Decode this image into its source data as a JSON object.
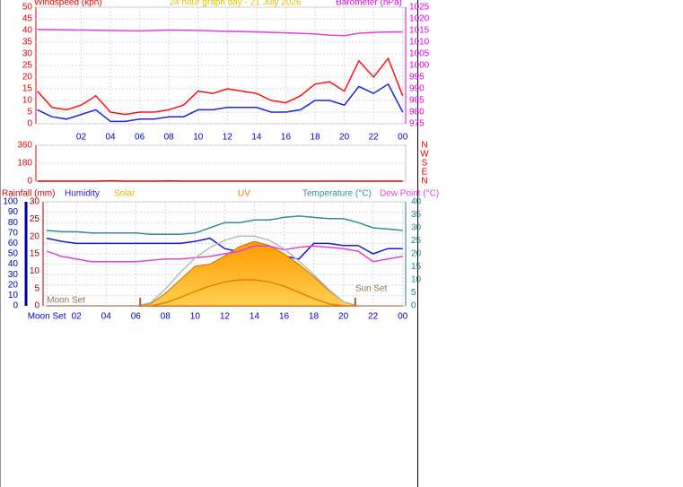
{
  "chart_data": [
    {
      "type": "line",
      "title": "24 hour graph day - 21 July 2026",
      "y_label": "Windspeed (kph)",
      "y2_label": "Barometer (hPa)",
      "x": [
        -1,
        0,
        1,
        2,
        3,
        4,
        5,
        6,
        7,
        8,
        9,
        10,
        11,
        12,
        13,
        14,
        15,
        16,
        17,
        18,
        19,
        20,
        21,
        22,
        23,
        24
      ],
      "xlim": [
        -1.1,
        24.2
      ],
      "xticks": [
        {
          "value": 2,
          "label": "02"
        },
        {
          "value": 4,
          "label": "04"
        },
        {
          "value": 6,
          "label": "06"
        },
        {
          "value": 8,
          "label": "08"
        },
        {
          "value": 10,
          "label": "10"
        },
        12,
        14,
        16,
        18,
        20,
        22,
        {
          "value": 24,
          "label": "00"
        }
      ],
      "ylim": [
        0,
        50
      ],
      "yticks": [
        0,
        5,
        10,
        15,
        20,
        25,
        30,
        35,
        40,
        45,
        50
      ],
      "y_color": "#e00000",
      "y2lim": [
        975,
        1025
      ],
      "y2ticks": [
        975,
        980,
        985,
        990,
        995,
        1000,
        1005,
        1010,
        1015,
        1020,
        1025
      ],
      "y2_color": "#e000e0",
      "grid": true,
      "series": [
        {
          "color": "#ff1010",
          "values": [
            14,
            7,
            6,
            8,
            12,
            5,
            4,
            5,
            5,
            6,
            8,
            14,
            13,
            15,
            14,
            13,
            10,
            9,
            12,
            17,
            18,
            14,
            27,
            20,
            28,
            12
          ]
        },
        {
          "color": "#2020e0",
          "values": [
            6,
            3,
            2,
            4,
            6,
            1,
            1,
            2,
            2,
            3,
            3,
            6,
            6,
            7,
            7,
            7,
            5,
            5,
            6,
            10,
            10,
            8,
            16,
            13,
            17,
            5
          ]
        },
        {
          "color": "#e040e0",
          "axis": "y2",
          "values": [
            1015.5,
            1015.4,
            1015.3,
            1015.2,
            1015.1,
            1015,
            1014.9,
            1014.8,
            1015,
            1015.2,
            1015.1,
            1015,
            1014.8,
            1014.6,
            1014.5,
            1014.4,
            1014.2,
            1014,
            1013.8,
            1013.5,
            1013,
            1012.8,
            1013.8,
            1014.2,
            1014.3,
            1014.4
          ]
        }
      ]
    },
    {
      "type": "line",
      "x": [
        -1,
        0,
        1,
        2,
        3,
        4,
        5,
        6,
        7,
        8,
        9,
        10,
        11,
        12,
        13,
        14,
        15,
        16,
        17,
        18,
        19,
        20,
        21,
        22,
        23,
        24
      ],
      "xlim": [
        -1.1,
        24.2
      ],
      "ylim": [
        0,
        360
      ],
      "yticks": [
        0,
        180,
        360
      ],
      "y_color": "#e00000",
      "y2lim": [
        0,
        360
      ],
      "y2ticks": [
        {
          "value": 360,
          "label": "N"
        },
        {
          "value": 270,
          "label": "W"
        },
        {
          "value": 180,
          "label": "S"
        },
        {
          "value": 90,
          "label": "E"
        },
        {
          "value": 0,
          "label": "N"
        }
      ],
      "y2_color": "#e00000",
      "grid": true,
      "series": [
        {
          "color": "#e00000",
          "values": [
            0,
            0,
            0,
            0,
            0,
            4,
            0,
            0,
            0,
            3,
            0,
            0,
            0,
            0,
            0,
            0,
            0,
            0,
            0,
            0,
            0,
            0,
            0,
            0,
            0,
            0
          ]
        }
      ]
    },
    {
      "type": "line",
      "x": [
        0,
        1,
        2,
        3,
        4,
        5,
        6,
        7,
        8,
        9,
        10,
        11,
        12,
        13,
        14,
        15,
        16,
        17,
        18,
        19,
        20,
        21,
        22,
        23,
        24
      ],
      "xlim": [
        -0.25,
        24.2
      ],
      "xticks": [
        {
          "value": 0,
          "label": "Moon Set"
        },
        {
          "value": 2,
          "label": "02"
        },
        {
          "value": 4,
          "label": "04"
        },
        {
          "value": 6,
          "label": "06"
        },
        {
          "value": 8,
          "label": "08"
        },
        {
          "value": 10,
          "label": "10"
        },
        12,
        14,
        16,
        18,
        20,
        22,
        {
          "value": 24,
          "label": "00"
        }
      ],
      "ylim": [
        0,
        100
      ],
      "yticks": [
        0,
        10,
        20,
        30,
        40,
        50,
        60,
        70,
        80,
        90,
        100
      ],
      "y_color": "#0000a0",
      "y3lim": [
        0,
        30
      ],
      "y3ticks": [
        0,
        5,
        10,
        15,
        20,
        25,
        30
      ],
      "y3_color": "#a00000",
      "y2lim": [
        0,
        40
      ],
      "y2ticks": [
        0,
        5,
        10,
        15,
        20,
        25,
        30,
        35,
        40
      ],
      "y2_color": "#208080",
      "grid": true,
      "sun_events": [
        6.3,
        20.8
      ],
      "annotations": [
        {
          "text": "Moon Set",
          "x": 0,
          "y": 2
        },
        {
          "text": "Sun Set",
          "x": 20.8,
          "y": 13
        }
      ],
      "series": [
        {
          "name": "Rainfall (mm)",
          "color": "#c00000",
          "axis": "y3",
          "values": [
            0,
            0,
            0,
            0,
            0,
            0,
            0,
            0,
            0,
            0,
            0,
            0,
            0,
            0,
            0,
            0,
            0,
            0,
            0,
            0,
            0,
            0,
            0,
            0,
            0
          ]
        },
        {
          "name": "Humidity",
          "color": "#1a1ad0",
          "values": [
            65,
            62,
            60,
            60,
            60,
            60,
            60,
            60,
            60,
            60,
            62,
            65,
            55,
            52,
            56,
            56,
            48,
            45,
            60,
            60,
            58,
            58,
            50,
            55,
            55
          ]
        },
        {
          "name": "Solar",
          "color": "#e8b000",
          "style": "area",
          "values": [
            0,
            0,
            0,
            0,
            0,
            0,
            0,
            2,
            12,
            25,
            38,
            40,
            48,
            57,
            62,
            58,
            50,
            40,
            28,
            15,
            4,
            0,
            0,
            0,
            0
          ]
        },
        {
          "name": "UV",
          "color": "#e08000",
          "values": [
            0,
            0,
            0,
            0,
            0,
            0,
            0,
            0,
            3,
            8,
            14,
            19,
            23,
            25,
            25,
            23,
            19,
            13,
            7,
            2,
            0,
            0,
            0,
            0,
            0
          ]
        },
        {
          "name": "Temperature (°C)",
          "color": "#308f8f",
          "axis": "y2",
          "values": [
            29,
            28.5,
            28.5,
            28,
            28,
            28,
            28,
            27.5,
            27.5,
            27.5,
            28,
            30,
            32,
            32,
            33,
            33,
            34,
            34.5,
            34,
            33.5,
            33.5,
            32,
            30,
            29.5,
            29
          ]
        },
        {
          "name": "Dew Point (°C)",
          "color": "#e040e0",
          "axis": "y2",
          "values": [
            21,
            19,
            18,
            17,
            17,
            17,
            17,
            17.5,
            18,
            18,
            18.5,
            19,
            20,
            21,
            23,
            23,
            21.5,
            22.5,
            23,
            22.5,
            22,
            21,
            17,
            18,
            19
          ]
        },
        {
          "color": "#b8b8b8",
          "values": [
            0,
            0,
            0,
            0,
            0,
            0,
            0,
            3,
            16,
            32,
            46,
            56,
            63,
            67,
            67,
            63,
            55,
            43,
            30,
            16,
            4,
            0,
            0,
            0,
            0
          ]
        }
      ]
    }
  ]
}
